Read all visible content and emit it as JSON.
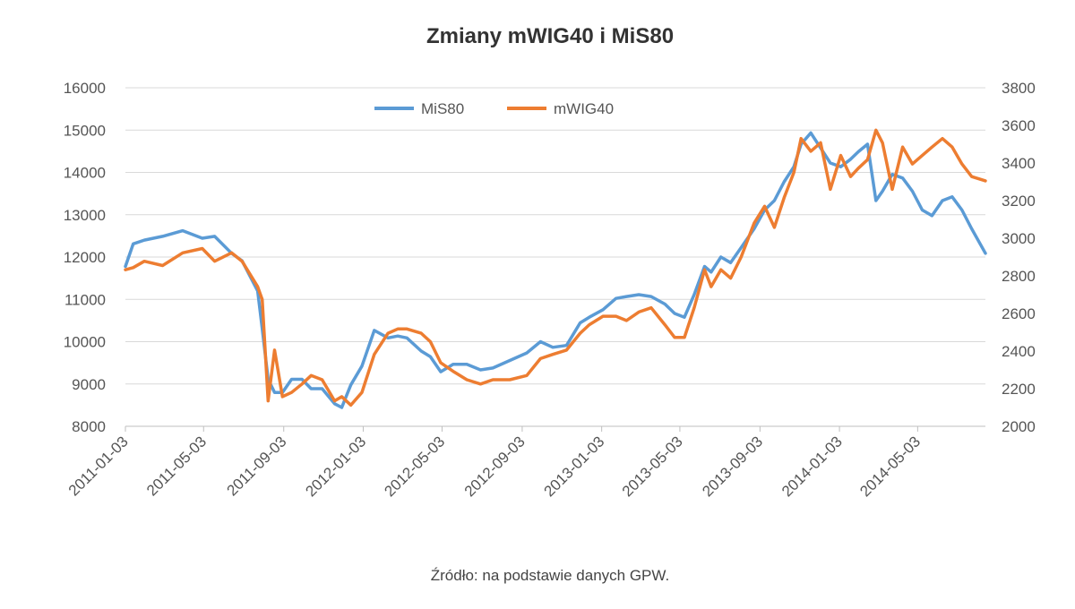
{
  "chart_data": {
    "type": "line",
    "title": "Zmiany mWIG40 i MiS80",
    "source": "Źródło: na podstawie danych GPW.",
    "x_range": [
      "2011-01-03",
      "2014-08-15"
    ],
    "x_ticks": [
      "2011-01-03",
      "2011-05-03",
      "2011-09-03",
      "2012-01-03",
      "2012-05-03",
      "2012-09-03",
      "2013-01-03",
      "2013-05-03",
      "2013-09-03",
      "2014-01-03",
      "2014-05-03"
    ],
    "y_left": {
      "min": 8000,
      "max": 16000,
      "ticks": [
        "8000",
        "9000",
        "10000",
        "11000",
        "12000",
        "13000",
        "14000",
        "15000",
        "16000"
      ]
    },
    "y_right": {
      "min": 2000,
      "max": 3800,
      "ticks": [
        "2000",
        "2200",
        "2400",
        "2600",
        "2800",
        "3000",
        "3200",
        "3400",
        "3600",
        "3800"
      ]
    },
    "grid": true,
    "legend_position": "top-center",
    "series": [
      {
        "name": "MiS80",
        "axis": "right",
        "color": "#5B9BD5",
        "x": [
          "2011-01-03",
          "2011-01-15",
          "2011-02-01",
          "2011-03-01",
          "2011-04-01",
          "2011-05-01",
          "2011-05-20",
          "2011-06-15",
          "2011-07-01",
          "2011-07-25",
          "2011-08-01",
          "2011-08-10",
          "2011-08-20",
          "2011-09-01",
          "2011-09-15",
          "2011-10-01",
          "2011-10-15",
          "2011-11-01",
          "2011-11-20",
          "2011-12-01",
          "2011-12-15",
          "2012-01-01",
          "2012-01-20",
          "2012-02-10",
          "2012-02-25",
          "2012-03-10",
          "2012-04-01",
          "2012-04-15",
          "2012-05-01",
          "2012-05-20",
          "2012-06-10",
          "2012-07-01",
          "2012-07-20",
          "2012-08-15",
          "2012-09-10",
          "2012-10-01",
          "2012-10-20",
          "2012-11-10",
          "2012-12-01",
          "2012-12-15",
          "2013-01-05",
          "2013-01-25",
          "2013-02-10",
          "2013-03-01",
          "2013-03-20",
          "2013-04-10",
          "2013-04-25",
          "2013-05-10",
          "2013-05-25",
          "2013-06-10",
          "2013-06-20",
          "2013-07-05",
          "2013-07-20",
          "2013-08-05",
          "2013-08-25",
          "2013-09-10",
          "2013-09-25",
          "2013-10-10",
          "2013-10-25",
          "2013-11-05",
          "2013-11-20",
          "2013-12-05",
          "2013-12-20",
          "2014-01-05",
          "2014-01-20",
          "2014-02-01",
          "2014-02-15",
          "2014-02-28",
          "2014-03-10",
          "2014-03-25",
          "2014-04-10",
          "2014-04-25",
          "2014-05-10",
          "2014-05-25",
          "2014-06-10",
          "2014-06-25",
          "2014-07-10",
          "2014-07-25",
          "2014-08-15"
        ],
        "values": [
          2850,
          2970,
          2990,
          3010,
          3040,
          3000,
          3010,
          2920,
          2880,
          2720,
          2520,
          2250,
          2180,
          2180,
          2250,
          2250,
          2200,
          2200,
          2120,
          2100,
          2220,
          2320,
          2510,
          2470,
          2480,
          2470,
          2400,
          2370,
          2290,
          2330,
          2330,
          2300,
          2310,
          2350,
          2390,
          2450,
          2420,
          2430,
          2550,
          2580,
          2620,
          2680,
          2690,
          2700,
          2690,
          2650,
          2600,
          2580,
          2700,
          2850,
          2820,
          2900,
          2870,
          2950,
          3050,
          3150,
          3200,
          3300,
          3380,
          3500,
          3560,
          3480,
          3400,
          3380,
          3420,
          3460,
          3500,
          3200,
          3250,
          3340,
          3320,
          3250,
          3150,
          3120,
          3200,
          3220,
          3150,
          3050,
          2920
        ]
      },
      {
        "name": "mWIG40",
        "axis": "left",
        "color": "#ED7D31",
        "x": [
          "2011-01-03",
          "2011-01-15",
          "2011-02-01",
          "2011-03-01",
          "2011-04-01",
          "2011-05-01",
          "2011-05-20",
          "2011-06-15",
          "2011-07-01",
          "2011-07-25",
          "2011-08-01",
          "2011-08-10",
          "2011-08-20",
          "2011-09-01",
          "2011-09-15",
          "2011-10-01",
          "2011-10-15",
          "2011-11-01",
          "2011-11-20",
          "2011-12-01",
          "2011-12-15",
          "2012-01-01",
          "2012-01-20",
          "2012-02-10",
          "2012-02-25",
          "2012-03-10",
          "2012-04-01",
          "2012-04-15",
          "2012-05-01",
          "2012-05-20",
          "2012-06-10",
          "2012-07-01",
          "2012-07-20",
          "2012-08-15",
          "2012-09-10",
          "2012-10-01",
          "2012-10-20",
          "2012-11-10",
          "2012-12-01",
          "2012-12-15",
          "2013-01-05",
          "2013-01-25",
          "2013-02-10",
          "2013-03-01",
          "2013-03-20",
          "2013-04-10",
          "2013-04-25",
          "2013-05-10",
          "2013-05-25",
          "2013-06-10",
          "2013-06-20",
          "2013-07-05",
          "2013-07-20",
          "2013-08-05",
          "2013-08-25",
          "2013-09-10",
          "2013-09-25",
          "2013-10-10",
          "2013-10-25",
          "2013-11-05",
          "2013-11-20",
          "2013-12-05",
          "2013-12-20",
          "2014-01-05",
          "2014-01-20",
          "2014-02-01",
          "2014-02-15",
          "2014-02-28",
          "2014-03-10",
          "2014-03-25",
          "2014-04-10",
          "2014-04-25",
          "2014-05-10",
          "2014-05-25",
          "2014-06-10",
          "2014-06-25",
          "2014-07-10",
          "2014-07-25",
          "2014-08-15"
        ],
        "values": [
          11700,
          11750,
          11900,
          11800,
          12100,
          12200,
          11900,
          12100,
          11900,
          11300,
          11000,
          8600,
          9800,
          8700,
          8800,
          9000,
          9200,
          9100,
          8600,
          8700,
          8500,
          8800,
          9700,
          10200,
          10300,
          10300,
          10200,
          10000,
          9500,
          9300,
          9100,
          9000,
          9100,
          9100,
          9200,
          9600,
          9700,
          9800,
          10200,
          10400,
          10600,
          10600,
          10500,
          10700,
          10800,
          10400,
          10100,
          10100,
          10800,
          11700,
          11300,
          11700,
          11500,
          12000,
          12800,
          13200,
          12700,
          13400,
          14000,
          14800,
          14500,
          14700,
          13600,
          14400,
          13900,
          14100,
          14300,
          15000,
          14700,
          13600,
          14600,
          14200,
          14400,
          14600,
          14800,
          14600,
          14200,
          13900,
          13800
        ]
      }
    ]
  }
}
